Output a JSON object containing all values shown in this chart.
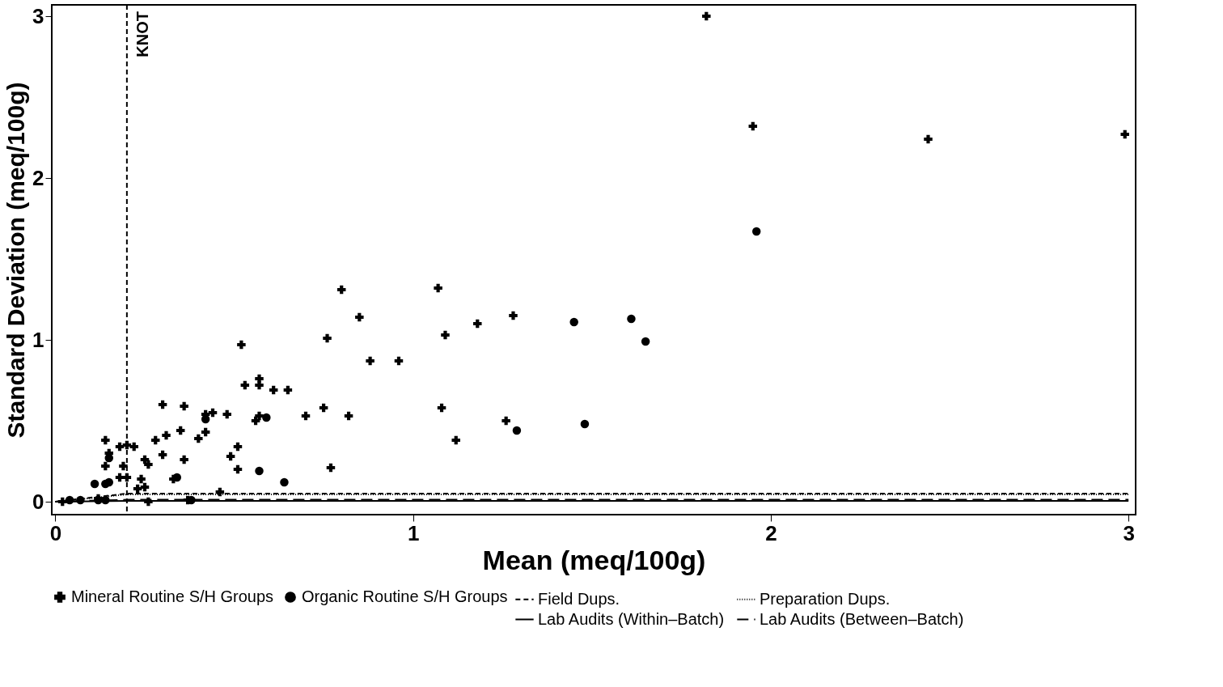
{
  "chart_data": {
    "type": "scatter",
    "xlabel": "Mean (meq/100g)",
    "ylabel": "Standard Deviation (meq/100g)",
    "xlim": [
      -0.01,
      3.02
    ],
    "ylim": [
      -0.08,
      3.07
    ],
    "xticks": [
      0,
      1,
      2,
      3
    ],
    "yticks": [
      0,
      1,
      2,
      3
    ],
    "grid": false,
    "legend": "bottom",
    "ref_lines": [
      {
        "axis": "x",
        "value": 0.2,
        "label": "KNOT",
        "line_style": "dashed",
        "color": "#000000"
      }
    ],
    "series": [
      {
        "name": "Mineral Routine S/H Groups",
        "marker": "cross",
        "color": "#000000",
        "x": [
          1.82,
          1.95,
          2.44,
          2.99,
          0.8,
          1.07,
          0.85,
          0.76,
          1.09,
          1.18,
          1.28,
          0.88,
          0.96,
          0.52,
          0.57,
          0.57,
          0.53,
          0.61,
          0.65,
          0.7,
          0.75,
          0.82,
          1.08,
          1.26,
          1.12,
          0.77,
          0.57,
          0.56,
          0.49,
          0.51,
          0.51,
          0.46,
          0.48,
          0.44,
          0.42,
          0.42,
          0.4,
          0.36,
          0.36,
          0.3,
          0.35,
          0.31,
          0.3,
          0.28,
          0.26,
          0.25,
          0.33,
          0.14,
          0.15,
          0.14,
          0.18,
          0.2,
          0.22,
          0.19,
          0.18,
          0.2,
          0.24,
          0.25,
          0.26,
          0.23,
          0.02,
          0.12,
          0.37
        ],
        "values": [
          3.0,
          2.32,
          2.24,
          2.27,
          1.31,
          1.32,
          1.14,
          1.01,
          1.03,
          1.1,
          1.15,
          0.87,
          0.87,
          0.97,
          0.76,
          0.72,
          0.72,
          0.69,
          0.69,
          0.53,
          0.58,
          0.53,
          0.58,
          0.5,
          0.38,
          0.21,
          0.53,
          0.5,
          0.28,
          0.34,
          0.2,
          0.06,
          0.54,
          0.55,
          0.54,
          0.43,
          0.39,
          0.26,
          0.59,
          0.6,
          0.44,
          0.41,
          0.29,
          0.38,
          0.23,
          0.26,
          0.14,
          0.38,
          0.3,
          0.22,
          0.34,
          0.35,
          0.34,
          0.22,
          0.15,
          0.15,
          0.14,
          0.09,
          0.0,
          0.08,
          0.0,
          0.02,
          0.01
        ]
      },
      {
        "name": "Organic Routine S/H Groups",
        "marker": "circle",
        "color": "#000000",
        "x": [
          1.96,
          1.61,
          1.45,
          1.65,
          1.48,
          1.29,
          0.59,
          0.42,
          0.57,
          0.64,
          0.34,
          0.38,
          0.11,
          0.15,
          0.15,
          0.14,
          0.04,
          0.07,
          0.08,
          0.12,
          0.14
        ],
        "values": [
          1.67,
          1.13,
          1.11,
          0.99,
          0.48,
          0.44,
          0.52,
          0.51,
          0.19,
          0.12,
          0.15,
          0.01,
          0.11,
          0.12,
          0.27,
          0.11,
          0.01,
          0.01,
          null,
          0.01,
          0.01
        ]
      },
      {
        "name": "Field Dups.",
        "type": "line",
        "line_style": "dashed",
        "color": "#000000",
        "x": [
          0,
          0.2,
          3.0
        ],
        "values": [
          0,
          0.05,
          0.05
        ]
      },
      {
        "name": "Preparation Dups.",
        "type": "line",
        "line_style": "dotted",
        "color": "#000000",
        "x": [
          0,
          0.2,
          3.0
        ],
        "values": [
          0,
          0.045,
          0.045
        ]
      },
      {
        "name": "Lab Audits (Within–Batch)",
        "type": "line",
        "line_style": "solid",
        "color": "#000000",
        "x": [
          0,
          0.2,
          3.0
        ],
        "values": [
          0,
          0.005,
          0.005
        ]
      },
      {
        "name": "Lab Audits (Between–Batch)",
        "type": "line",
        "line_style": "dashed",
        "color": "#000000",
        "x": [
          0,
          0.2,
          3.0
        ],
        "values": [
          0,
          0.012,
          0.012
        ]
      }
    ]
  }
}
